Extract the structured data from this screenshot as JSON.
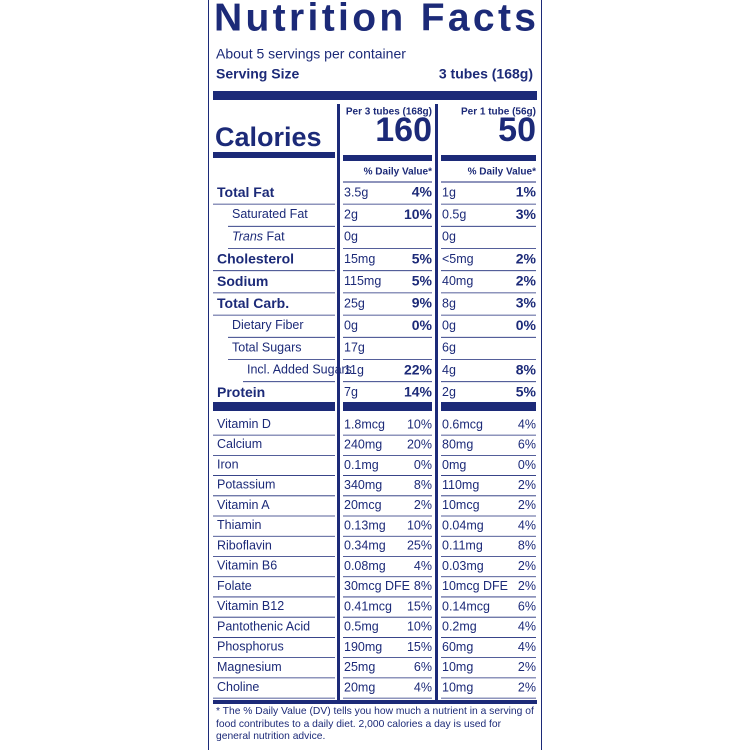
{
  "header": {
    "title": "Nutrition Facts",
    "servings": "About 5 servings per container",
    "serving_size_label": "Serving Size",
    "serving_size_value": "3 tubes (168g)"
  },
  "calories_label": "Calories",
  "columns": [
    {
      "heading": "Per 3 tubes (168g)",
      "calories": "160",
      "dv_heading": "% Daily Value*"
    },
    {
      "heading": "Per 1 tube (56g)",
      "calories": "50",
      "dv_heading": "% Daily Value*"
    }
  ],
  "nutrients": [
    {
      "name": "Total Fat",
      "bold": true,
      "values": [
        [
          "3.5g",
          "4%"
        ],
        [
          "1g",
          "1%"
        ]
      ]
    },
    {
      "name": "Saturated Fat",
      "indent": 1,
      "values": [
        [
          "2g",
          "10%"
        ],
        [
          "0.5g",
          "3%"
        ]
      ]
    },
    {
      "name_italic": "Trans",
      "name": "Fat",
      "indent": 1,
      "values": [
        [
          "0g"
        ],
        [
          "0g"
        ]
      ]
    },
    {
      "name": "Cholesterol",
      "bold": true,
      "values": [
        [
          "15mg",
          "5%"
        ],
        [
          "<5mg",
          "2%"
        ]
      ]
    },
    {
      "name": "Sodium",
      "bold": true,
      "values": [
        [
          "115mg",
          "5%"
        ],
        [
          "40mg",
          "2%"
        ]
      ]
    },
    {
      "name": "Total Carb.",
      "bold": true,
      "values": [
        [
          "25g",
          "9%"
        ],
        [
          "8g",
          "3%"
        ]
      ]
    },
    {
      "name": "Dietary Fiber",
      "indent": 1,
      "values": [
        [
          "0g",
          "0%"
        ],
        [
          "0g",
          "0%"
        ]
      ]
    },
    {
      "name": "Total Sugars",
      "indent": 1,
      "values": [
        [
          "17g"
        ],
        [
          "6g"
        ]
      ]
    },
    {
      "name": "Incl. Added Sugars",
      "indent": 2,
      "values": [
        [
          "11g",
          "22%"
        ],
        [
          "4g",
          "8%"
        ]
      ]
    },
    {
      "name": "Protein",
      "bold": true,
      "values": [
        [
          "7g",
          "14%"
        ],
        [
          "2g",
          "5%"
        ]
      ]
    }
  ],
  "vitamins": [
    {
      "name": "Vitamin D",
      "values": [
        [
          "1.8mcg",
          "10%"
        ],
        [
          "0.6mcg",
          "4%"
        ]
      ]
    },
    {
      "name": "Calcium",
      "values": [
        [
          "240mg",
          "20%"
        ],
        [
          "80mg",
          "6%"
        ]
      ]
    },
    {
      "name": "Iron",
      "values": [
        [
          "0.1mg",
          "0%"
        ],
        [
          "0mg",
          "0%"
        ]
      ]
    },
    {
      "name": "Potassium",
      "values": [
        [
          "340mg",
          "8%"
        ],
        [
          "110mg",
          "2%"
        ]
      ]
    },
    {
      "name": "Vitamin A",
      "values": [
        [
          "20mcg",
          "2%"
        ],
        [
          "10mcg",
          "2%"
        ]
      ]
    },
    {
      "name": "Thiamin",
      "values": [
        [
          "0.13mg",
          "10%"
        ],
        [
          "0.04mg",
          "4%"
        ]
      ]
    },
    {
      "name": "Riboflavin",
      "values": [
        [
          "0.34mg",
          "25%"
        ],
        [
          "0.11mg",
          "8%"
        ]
      ]
    },
    {
      "name": "Vitamin B6",
      "values": [
        [
          "0.08mg",
          "4%"
        ],
        [
          "0.03mg",
          "2%"
        ]
      ]
    },
    {
      "name": "Folate",
      "values": [
        [
          "30mcg DFE",
          "8%"
        ],
        [
          "10mcg DFE",
          "2%"
        ]
      ]
    },
    {
      "name": "Vitamin B12",
      "values": [
        [
          "0.41mcg",
          "15%"
        ],
        [
          "0.14mcg",
          "6%"
        ]
      ]
    },
    {
      "name": "Pantothenic Acid",
      "values": [
        [
          "0.5mg",
          "10%"
        ],
        [
          "0.2mg",
          "4%"
        ]
      ]
    },
    {
      "name": "Phosphorus",
      "values": [
        [
          "190mg",
          "15%"
        ],
        [
          "60mg",
          "4%"
        ]
      ]
    },
    {
      "name": "Magnesium",
      "values": [
        [
          "25mg",
          "6%"
        ],
        [
          "10mg",
          "2%"
        ]
      ]
    },
    {
      "name": "Choline",
      "values": [
        [
          "20mg",
          "4%"
        ],
        [
          "10mg",
          "2%"
        ]
      ]
    }
  ],
  "footnote": "* The % Daily Value (DV) tells you how much a nutrient in a serving of food contributes to a daily diet. 2,000 calories a day is used for general nutrition advice."
}
